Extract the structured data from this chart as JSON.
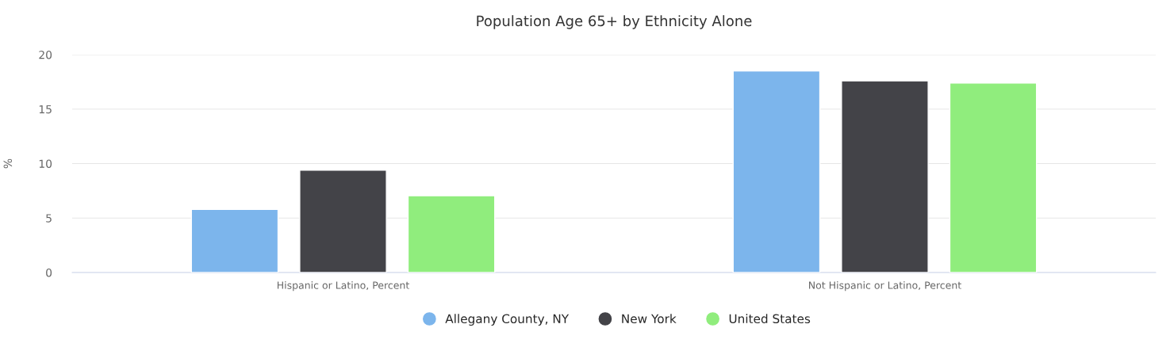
{
  "chart_data": {
    "type": "bar",
    "title": "Population Age 65+ by Ethnicity Alone",
    "ylabel": "%",
    "categories": [
      "Hispanic or Latino, Percent",
      "Not Hispanic or Latino, Percent"
    ],
    "series": [
      {
        "name": "Allegany County, NY",
        "color": "#7cb5ec",
        "values": [
          5.8,
          18.5
        ]
      },
      {
        "name": "New York",
        "color": "#434348",
        "values": [
          9.4,
          17.6
        ]
      },
      {
        "name": "United States",
        "color": "#90ed7d",
        "values": [
          7.05,
          17.4
        ]
      }
    ],
    "ylim": [
      0,
      20
    ],
    "yticks": [
      0,
      5,
      10,
      15,
      20
    ],
    "grid": "y",
    "legend": "bottom",
    "marker": "circle"
  }
}
